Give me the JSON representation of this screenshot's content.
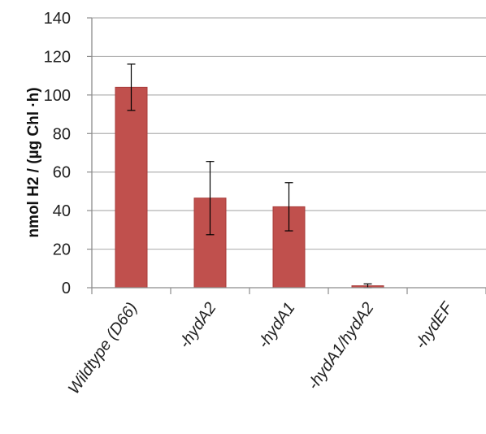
{
  "chart_data": {
    "type": "bar",
    "title": "",
    "xlabel": "",
    "ylabel": "nmol H2 / (µg Chl ·h)",
    "categories": [
      "Wildtype (D66)",
      "-hydA2",
      "-hydA1",
      "-hydA1/hydA2",
      "-hydEF"
    ],
    "values": [
      104,
      46.5,
      42,
      1,
      0
    ],
    "error": [
      12,
      19,
      12.5,
      1,
      0
    ],
    "ylim": [
      0,
      140
    ],
    "yticks": [
      0,
      20,
      40,
      60,
      80,
      100,
      120,
      140
    ],
    "grid": true,
    "legend": "none",
    "bar_color": "#c0504d",
    "bar_edge_color": "#a83c3a"
  }
}
